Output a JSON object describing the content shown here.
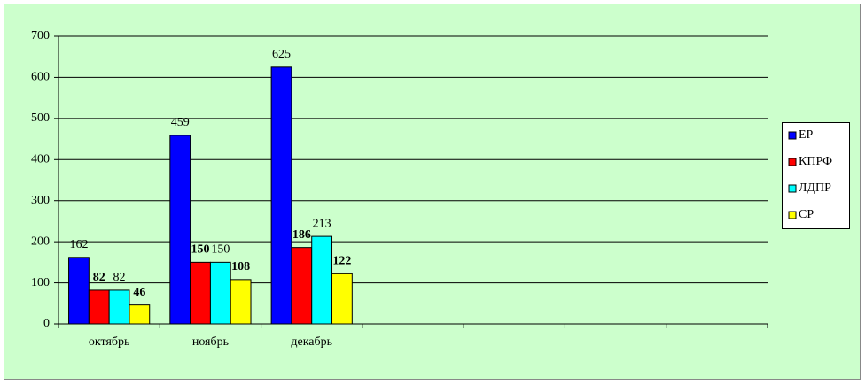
{
  "chart_data": {
    "type": "bar",
    "categories": [
      "октябрь",
      "ноябрь",
      "декабрь",
      null,
      null,
      null,
      null
    ],
    "series": [
      {
        "name": "ЕР",
        "color": "#0000ff",
        "bold_labels": false,
        "values": [
          162,
          459,
          625,
          null,
          null,
          null,
          null
        ]
      },
      {
        "name": "КПРФ",
        "color": "#ff0000",
        "bold_labels": true,
        "values": [
          82,
          150,
          186,
          null,
          null,
          null,
          null
        ]
      },
      {
        "name": "ЛДПР",
        "color": "#00ffff",
        "bold_labels": false,
        "values": [
          82,
          150,
          213,
          null,
          null,
          null,
          null
        ]
      },
      {
        "name": "СР",
        "color": "#ffff00",
        "bold_labels": true,
        "values": [
          46,
          108,
          122,
          null,
          null,
          null,
          null
        ]
      }
    ],
    "ylim": [
      0,
      700
    ],
    "yticks": [
      0,
      100,
      200,
      300,
      400,
      500,
      600,
      700
    ],
    "grid": true,
    "legend": "right"
  }
}
